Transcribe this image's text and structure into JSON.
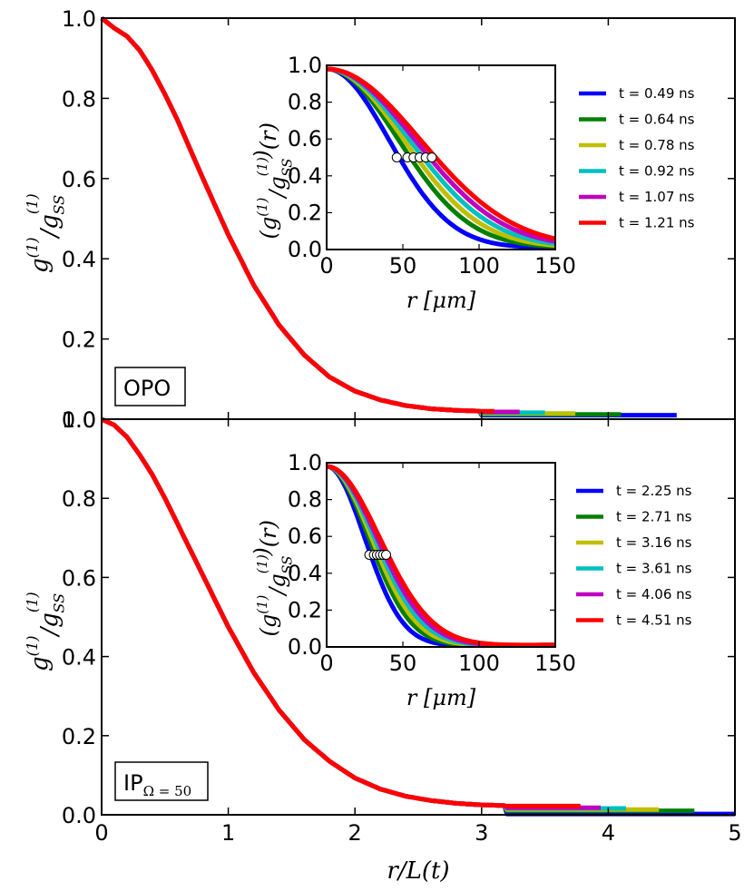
{
  "chart_data": [
    {
      "type": "line",
      "panel": "top",
      "box_label": "OPO",
      "ylabel": "g^(1)/g^(1)_SS",
      "xlabel": "r/L(t)",
      "xlim": [
        0,
        5
      ],
      "ylim": [
        0,
        1
      ],
      "x_ticks": [
        "0",
        "1",
        "2",
        "3",
        "4",
        "5"
      ],
      "y_ticks": [
        "0.0",
        "0.2",
        "0.4",
        "0.6",
        "0.8",
        "1.0"
      ],
      "series": [
        {
          "name": "t = 0.49 ns",
          "color": "#0000ff",
          "x_end": 4.55,
          "tail": 0.01
        },
        {
          "name": "t = 0.64 ns",
          "color": "#008000",
          "x_end": 4.1,
          "tail": 0.012
        },
        {
          "name": "t = 0.78 ns",
          "color": "#bfbf00",
          "x_end": 3.75,
          "tail": 0.014
        },
        {
          "name": "t = 0.92 ns",
          "color": "#00bfbf",
          "x_end": 3.5,
          "tail": 0.016
        },
        {
          "name": "t = 1.07 ns",
          "color": "#bf00bf",
          "x_end": 3.3,
          "tail": 0.018
        },
        {
          "name": "t = 1.21 ns",
          "color": "#ff0000",
          "x_end": 3.1,
          "tail": 0.02
        }
      ],
      "collapsed_curve": {
        "x": [
          0,
          0.1,
          0.2,
          0.3,
          0.4,
          0.5,
          0.6,
          0.8,
          1.0,
          1.2,
          1.4,
          1.6,
          1.8,
          2.0,
          2.2,
          2.4,
          2.6,
          2.8,
          3.0
        ],
        "y": [
          1.0,
          0.975,
          0.955,
          0.92,
          0.87,
          0.81,
          0.745,
          0.6,
          0.46,
          0.335,
          0.235,
          0.16,
          0.105,
          0.07,
          0.048,
          0.034,
          0.026,
          0.022,
          0.02
        ]
      },
      "inset": {
        "xlabel": "r [μm]",
        "ylabel": "(g^(1)/g^(1)_SS)(r)",
        "xlim": [
          0,
          150
        ],
        "ylim": [
          0,
          1
        ],
        "x_ticks": [
          "0",
          "50",
          "100",
          "150"
        ],
        "y_ticks": [
          "0.0",
          "0.2",
          "0.4",
          "0.6",
          "0.8",
          "1.0"
        ],
        "half_widths": [
          46,
          53,
          57,
          61,
          65,
          69
        ],
        "marker_y": 0.5
      }
    },
    {
      "type": "line",
      "panel": "bottom",
      "box_label": "IP",
      "box_label_sub": "Ω = 50",
      "ylabel": "g^(1)/g^(1)_SS",
      "xlabel": "r/L(t)",
      "xlim": [
        0,
        5
      ],
      "ylim": [
        0,
        1
      ],
      "x_ticks": [
        "0",
        "1",
        "2",
        "3",
        "4",
        "5"
      ],
      "y_ticks": [
        "0.0",
        "0.2",
        "0.4",
        "0.6",
        "0.8",
        "1.0"
      ],
      "series": [
        {
          "name": "t = 2.25 ns",
          "color": "#0000ff",
          "x_end": 5.0,
          "tail": 0.002
        },
        {
          "name": "t = 2.71 ns",
          "color": "#008000",
          "x_end": 4.68,
          "tail": 0.01
        },
        {
          "name": "t = 3.16 ns",
          "color": "#bfbf00",
          "x_end": 4.4,
          "tail": 0.013
        },
        {
          "name": "t = 3.61 ns",
          "color": "#00bfbf",
          "x_end": 4.15,
          "tail": 0.016
        },
        {
          "name": "t = 4.06 ns",
          "color": "#bf00bf",
          "x_end": 3.95,
          "tail": 0.018
        },
        {
          "name": "t = 4.51 ns",
          "color": "#ff0000",
          "x_end": 3.78,
          "tail": 0.022
        }
      ],
      "collapsed_curve": {
        "x": [
          0,
          0.1,
          0.2,
          0.3,
          0.4,
          0.5,
          0.6,
          0.8,
          1.0,
          1.2,
          1.4,
          1.6,
          1.8,
          2.0,
          2.2,
          2.4,
          2.6,
          2.8,
          3.0,
          3.2
        ],
        "y": [
          1.0,
          0.985,
          0.955,
          0.91,
          0.86,
          0.8,
          0.735,
          0.605,
          0.475,
          0.36,
          0.265,
          0.19,
          0.135,
          0.093,
          0.065,
          0.047,
          0.036,
          0.029,
          0.025,
          0.023
        ]
      },
      "inset": {
        "xlabel": "r [μm]",
        "ylabel": "(g^(1)/g^(1)_SS)(r)",
        "xlim": [
          0,
          150
        ],
        "ylim": [
          0,
          1
        ],
        "x_ticks": [
          "0",
          "50",
          "100",
          "150"
        ],
        "y_ticks": [
          "0.0",
          "0.2",
          "0.4",
          "0.6",
          "0.8",
          "1.0"
        ],
        "half_widths": [
          28,
          31,
          33,
          35,
          37,
          39
        ],
        "marker_y": 0.5
      }
    }
  ]
}
